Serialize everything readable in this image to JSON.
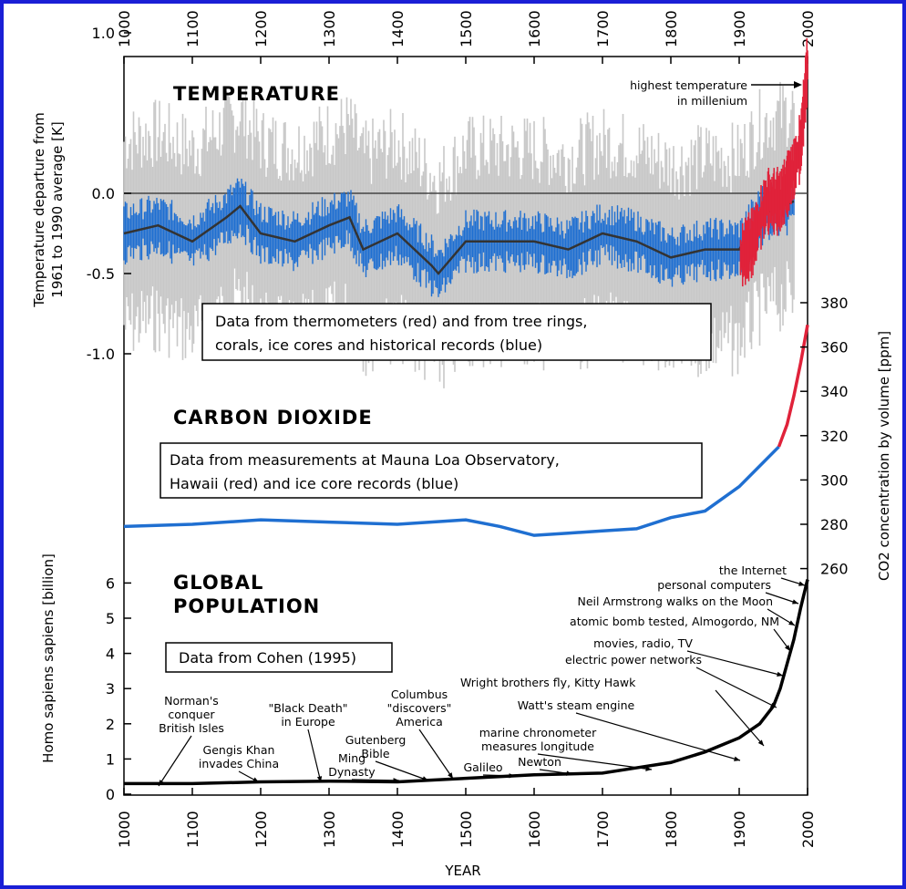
{
  "colors": {
    "frame": "#1a1fd6",
    "proxy": "#1f6fd1",
    "thermometer": "#e0223a",
    "spread": "#c8c8c8",
    "smooth": "#333333"
  },
  "chart_data": [
    {
      "type": "line",
      "panel": "temperature",
      "heading": "TEMPERATURE",
      "ylabel_line1": "Temperature departure from",
      "ylabel_line2": "1961 to 1990 average [K]",
      "y_ticks": [
        "1.0",
        "0.0",
        "-0.5",
        "-1.0"
      ],
      "x_ticks": [
        "1000",
        "1100",
        "1200",
        "1300",
        "1400",
        "1500",
        "1600",
        "1700",
        "1800",
        "1900",
        "2000"
      ],
      "xlim": [
        1000,
        2000
      ],
      "ylim": [
        -1.05,
        1.4
      ],
      "note_line1": "Data from thermometers (red) and from tree rings,",
      "note_line2": "corals, ice cores and historical records (blue)",
      "annotation_line1": "highest temperature",
      "annotation_line2": "in millenium",
      "series": [
        {
          "source": "proxy",
          "x": [
            1000,
            1050,
            1100,
            1150,
            1170,
            1200,
            1250,
            1300,
            1330,
            1350,
            1400,
            1450,
            1460,
            1500,
            1550,
            1600,
            1650,
            1700,
            1750,
            1800,
            1850,
            1900,
            1930,
            1950,
            1980
          ],
          "y": [
            -0.25,
            -0.2,
            -0.3,
            -0.15,
            -0.08,
            -0.25,
            -0.3,
            -0.2,
            -0.15,
            -0.35,
            -0.25,
            -0.45,
            -0.5,
            -0.3,
            -0.3,
            -0.3,
            -0.35,
            -0.25,
            -0.3,
            -0.4,
            -0.35,
            -0.35,
            -0.15,
            -0.1,
            -0.05
          ]
        },
        {
          "source": "thermometers",
          "x": [
            1902,
            1920,
            1940,
            1960,
            1980,
            1990,
            2000
          ],
          "y": [
            -0.4,
            -0.3,
            -0.05,
            -0.05,
            0.15,
            0.3,
            0.8
          ]
        }
      ]
    },
    {
      "type": "line",
      "panel": "carbon dioxide",
      "heading": "CARBON DIOXIDE",
      "ylabel": "CO2 concentration by volume [ppm]",
      "y_ticks": [
        "260",
        "280",
        "300",
        "320",
        "340",
        "360",
        "380"
      ],
      "ylim": [
        255,
        385
      ],
      "note_line1": "Data from measurements at Mauna Loa Observatory,",
      "note_line2": "Hawaii (red) and ice core records (blue)",
      "series": [
        {
          "source": "ice core records",
          "x": [
            1000,
            1100,
            1200,
            1300,
            1400,
            1500,
            1550,
            1600,
            1650,
            1700,
            1750,
            1800,
            1850,
            1900,
            1958
          ],
          "y": [
            279,
            280,
            282,
            281,
            280,
            282,
            279,
            275,
            276,
            277,
            278,
            283,
            286,
            297,
            315
          ]
        },
        {
          "source": "Mauna Loa Observatory",
          "x": [
            1958,
            1970,
            1980,
            1990,
            2000
          ],
          "y": [
            315,
            325,
            338,
            353,
            370
          ]
        }
      ]
    },
    {
      "type": "line",
      "panel": "global population",
      "heading_line1": "GLOBAL",
      "heading_line2": "POPULATION",
      "ylabel": "Homo sapiens sapiens [billion]",
      "xlabel": "YEAR",
      "y_ticks": [
        "0",
        "1",
        "2",
        "3",
        "4",
        "5",
        "6"
      ],
      "x_ticks": [
        "1000",
        "1100",
        "1200",
        "1300",
        "1400",
        "1500",
        "1600",
        "1700",
        "1800",
        "1900",
        "2000"
      ],
      "xlim": [
        1000,
        2000
      ],
      "ylim": [
        0,
        6.5
      ],
      "note": "Data from Cohen (1995)",
      "series": [
        {
          "source": "Cohen (1995)",
          "x": [
            1000,
            1100,
            1200,
            1300,
            1400,
            1500,
            1600,
            1700,
            1750,
            1800,
            1850,
            1900,
            1930,
            1950,
            1960,
            1970,
            1980,
            1990,
            2000
          ],
          "y": [
            0.3,
            0.3,
            0.35,
            0.37,
            0.35,
            0.45,
            0.55,
            0.6,
            0.75,
            0.9,
            1.2,
            1.6,
            2.0,
            2.5,
            3.0,
            3.7,
            4.4,
            5.3,
            6.1
          ]
        }
      ],
      "events": [
        {
          "lines": [
            "Norman's",
            "conquer",
            "British Isles"
          ]
        },
        {
          "lines": [
            "Gengis Khan",
            "invades China"
          ]
        },
        {
          "lines": [
            "\"Black Death\"",
            "in Europe"
          ]
        },
        {
          "lines": [
            "Gutenberg",
            "Bible"
          ]
        },
        {
          "lines": [
            "Ming",
            "Dynasty"
          ]
        },
        {
          "lines": [
            "Columbus",
            "\"discovers\"",
            "America"
          ]
        },
        {
          "lines": [
            "Galileo"
          ]
        },
        {
          "lines": [
            "Newton"
          ]
        },
        {
          "lines": [
            "marine chronometer",
            "measures longitude"
          ]
        },
        {
          "lines": [
            "Watt's steam engine"
          ]
        },
        {
          "lines": [
            "Wright brothers fly, Kitty Hawk"
          ]
        },
        {
          "lines": [
            "electric power networks"
          ]
        },
        {
          "lines": [
            "movies, radio, TV"
          ]
        },
        {
          "lines": [
            "atomic bomb tested, Almogordo, NM"
          ]
        },
        {
          "lines": [
            "Neil Armstrong walks on the Moon"
          ]
        },
        {
          "lines": [
            "personal computers"
          ]
        },
        {
          "lines": [
            "the Internet"
          ]
        }
      ]
    }
  ]
}
